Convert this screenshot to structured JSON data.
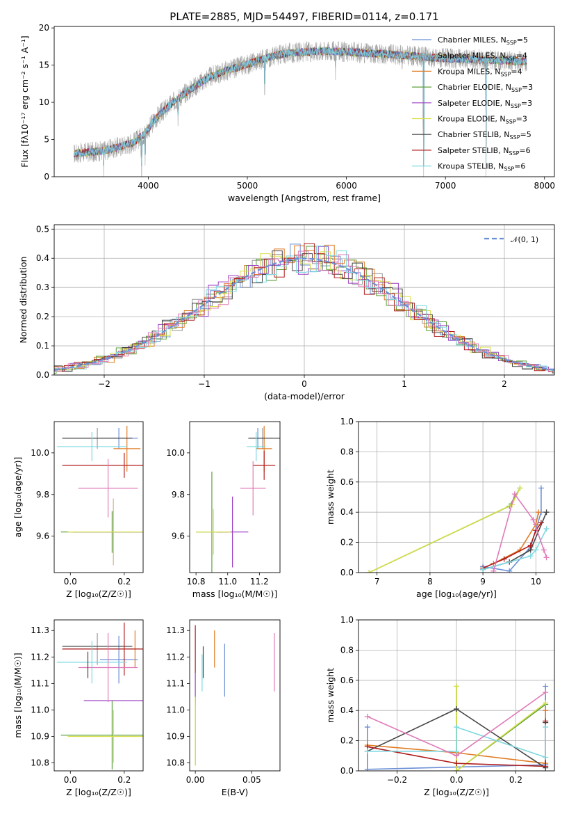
{
  "figure": {
    "title": "PLATE=2885, MJD=54497, FIBERID=0114, z=0.171"
  },
  "model_colors": {
    "Chabrier MILES": "#6b8fd6",
    "Salpeter MILES": "#999999",
    "Kroupa MILES": "#e07b24",
    "Chabrier ELODIE": "#5fa03c",
    "Salpeter ELODIE": "#9b3fc2",
    "Kroupa ELODIE": "#d8e04a",
    "Chabrier STELIB": "#444444",
    "Salpeter STELIB": "#b01c1c",
    "Kroupa STELIB": "#7fd8e0",
    "extra_pink": "#e07ab8"
  },
  "chart_data": [
    {
      "id": "spectrum",
      "type": "line",
      "xlabel": "wavelength [Angstrom, rest frame]",
      "ylabel": "Flux [fλ10⁻¹⁷ erg cm⁻² s⁻¹ A⁻¹]",
      "xlim": [
        3050,
        8100
      ],
      "ylim": [
        0,
        20.2
      ],
      "xticks": [
        "4000",
        "5000",
        "6000",
        "7000",
        "8000"
      ],
      "yticks": [
        "0",
        "5",
        "10",
        "15",
        "20"
      ],
      "legend_position": "top-right",
      "legend": [
        {
          "model": "Chabrier MILES",
          "text": "Chabrier MILES, N",
          "sub": "SSP",
          "tail": "=5"
        },
        {
          "model": "Salpeter MILES",
          "text": "Salpeter MILES, N",
          "sub": "SSP",
          "tail": "=4"
        },
        {
          "model": "Kroupa MILES",
          "text": "Kroupa MILES, N",
          "sub": "SSP",
          "tail": "=4"
        },
        {
          "model": "Chabrier ELODIE",
          "text": "Chabrier ELODIE, N",
          "sub": "SSP",
          "tail": "=3"
        },
        {
          "model": "Salpeter ELODIE",
          "text": "Salpeter ELODIE, N",
          "sub": "SSP",
          "tail": "=3"
        },
        {
          "model": "Kroupa ELODIE",
          "text": "Kroupa ELODIE, N",
          "sub": "SSP",
          "tail": "=3"
        },
        {
          "model": "Chabrier STELIB",
          "text": "Chabrier STELIB, N",
          "sub": "SSP",
          "tail": "=5"
        },
        {
          "model": "Salpeter STELIB",
          "text": "Salpeter STELIB, N",
          "sub": "SSP",
          "tail": "=6"
        },
        {
          "model": "Kroupa STELIB",
          "text": "Kroupa STELIB, N",
          "sub": "SSP",
          "tail": "=6"
        }
      ],
      "continuum": {
        "x": [
          3250,
          3400,
          3550,
          3700,
          3850,
          3950,
          4100,
          4250,
          4400,
          4600,
          4800,
          5000,
          5200,
          5400,
          5600,
          5800,
          6000,
          6200,
          6400,
          6600,
          6800,
          7000,
          7200,
          7400,
          7600,
          7800
        ],
        "y": [
          3.1,
          3.3,
          3.5,
          4.0,
          4.6,
          5.6,
          8.2,
          10.0,
          11.5,
          13.3,
          14.3,
          15.1,
          16.0,
          16.6,
          16.8,
          16.9,
          16.8,
          16.6,
          16.5,
          16.3,
          16.1,
          15.9,
          15.8,
          15.7,
          15.6,
          15.5
        ]
      },
      "absorption_lines": [
        {
          "x": 3550,
          "y_min": 0.0
        },
        {
          "x": 3933,
          "y_min": 0.0
        },
        {
          "x": 3968,
          "y_min": 1.5
        },
        {
          "x": 4300,
          "y_min": 6.8
        },
        {
          "x": 5175,
          "y_min": 11.0
        },
        {
          "x": 5890,
          "y_min": 13.0
        },
        {
          "x": 6563,
          "y_min": 14.5
        },
        {
          "x": 6780,
          "y_min": 0.0
        },
        {
          "x": 7410,
          "y_min": 0.0
        }
      ]
    },
    {
      "id": "residuals",
      "type": "line",
      "xlabel": "(data-model)/error",
      "ylabel": "Normed distribution",
      "xlim": [
        -2.5,
        2.5
      ],
      "ylim": [
        0,
        0.515
      ],
      "xticks": [
        "−2",
        "−1",
        "0",
        "1",
        "2"
      ],
      "yticks": [
        "0.0",
        "0.1",
        "0.2",
        "0.3",
        "0.4",
        "0.5"
      ],
      "grid": true,
      "legend_position": "top-right",
      "legend": [
        {
          "text": "𝒩(0, 1)",
          "color": "#6b8fd6",
          "dashed": true
        }
      ],
      "bin_width": 0.1
    },
    {
      "id": "age-vs-Z",
      "type": "scatter",
      "xlabel": "Z [log₁₀(Z/Z☉)]",
      "ylabel": "age  [log₁₀(age/yr)]",
      "xlim": [
        -0.06,
        0.27
      ],
      "ylim": [
        9.425,
        10.15
      ],
      "xticks": [
        "0.0",
        "0.2"
      ],
      "yticks": [
        "9.6",
        "9.8",
        "10.0"
      ],
      "points": [
        {
          "model": "Chabrier MILES",
          "x": 0.18,
          "xerr": 0.07,
          "y": 10.07,
          "yerr": 0.05
        },
        {
          "model": "Salpeter MILES",
          "x": 0.1,
          "xerr": 0.13,
          "y": 10.07,
          "yerr": 0.05
        },
        {
          "model": "Kroupa MILES",
          "x": 0.21,
          "xerr": 0.05,
          "y": 10.02,
          "yerr": 0.11
        },
        {
          "model": "Chabrier ELODIE",
          "x": 0.155,
          "xerr": 0.19,
          "y": 9.62,
          "yerr": 0.1
        },
        {
          "model": "Salpeter ELODIE",
          "x": 0.16,
          "xerr": 0.15,
          "y": 9.62,
          "yerr": 0.16
        },
        {
          "model": "Kroupa ELODIE",
          "x": 0.16,
          "xerr": 0.17,
          "y": 9.62,
          "yerr": 0.16
        },
        {
          "model": "Chabrier STELIB",
          "x": 0.1,
          "xerr": 0.13,
          "y": 10.07,
          "yerr": 0.0
        },
        {
          "model": "Salpeter STELIB",
          "x": 0.2,
          "xerr": 0.23,
          "y": 9.94,
          "yerr": 0.06
        },
        {
          "model": "Kroupa STELIB",
          "x": 0.08,
          "xerr": 0.13,
          "y": 10.03,
          "yerr": 0.07
        },
        {
          "model": "extra_pink",
          "x": 0.14,
          "xerr": 0.11,
          "y": 9.83,
          "yerr": 0.14
        }
      ]
    },
    {
      "id": "age-vs-mass",
      "type": "scatter",
      "xlabel": "mass [log₁₀(M/M☉)]",
      "ylabel": "",
      "xlim": [
        10.76,
        11.33
      ],
      "ylim": [
        9.425,
        10.15
      ],
      "xticks": [
        "10.8",
        "11.0",
        "11.2"
      ],
      "yticks": [
        "9.6",
        "9.8",
        "10.0"
      ],
      "points": [
        {
          "model": "Chabrier MILES",
          "x": 11.19,
          "xerr": 0.05,
          "y": 10.07,
          "yerr": 0.05
        },
        {
          "model": "Salpeter MILES",
          "x": 11.22,
          "xerr": 0.06,
          "y": 10.07,
          "yerr": 0.05
        },
        {
          "model": "Kroupa MILES",
          "x": 11.23,
          "xerr": 0.05,
          "y": 10.02,
          "yerr": 0.11
        },
        {
          "model": "Chabrier ELODIE",
          "x": 10.9,
          "xerr": 0.1,
          "y": 9.62,
          "yerr": 0.29
        },
        {
          "model": "Salpeter ELODIE",
          "x": 11.03,
          "xerr": 0.1,
          "y": 9.62,
          "yerr": 0.17
        },
        {
          "model": "Kroupa ELODIE",
          "x": 10.91,
          "xerr": 0.11,
          "y": 9.62,
          "yerr": 0.11
        },
        {
          "model": "Chabrier STELIB",
          "x": 11.23,
          "xerr": 0.1,
          "y": 10.07,
          "yerr": 0.0
        },
        {
          "model": "Salpeter STELIB",
          "x": 11.23,
          "xerr": 0.07,
          "y": 9.94,
          "yerr": 0.07
        },
        {
          "model": "Kroupa STELIB",
          "x": 11.18,
          "xerr": 0.06,
          "y": 10.03,
          "yerr": 0.07
        },
        {
          "model": "extra_pink",
          "x": 11.16,
          "xerr": 0.08,
          "y": 9.83,
          "yerr": 0.13
        }
      ]
    },
    {
      "id": "weight-vs-age",
      "type": "line",
      "xlabel": "age  [log₁₀(age/yr)]",
      "ylabel": "mass weight",
      "xlim": [
        6.65,
        10.35
      ],
      "ylim": [
        0,
        1.0
      ],
      "xticks": [
        "7",
        "8",
        "9",
        "10"
      ],
      "yticks": [
        "0.0",
        "0.2",
        "0.4",
        "0.6",
        "0.8",
        "1.0"
      ],
      "grid": true,
      "series": [
        {
          "model": "Chabrier MILES",
          "x": [
            9.0,
            9.5,
            9.9,
            10.1,
            10.1
          ],
          "y": [
            0.04,
            0.01,
            0.17,
            0.4,
            0.56
          ]
        },
        {
          "model": "Kroupa MILES",
          "x": [
            9.2,
            9.7,
            10.0,
            10.05
          ],
          "y": [
            0.06,
            0.15,
            0.32,
            0.4
          ]
        },
        {
          "model": "Chabrier ELODIE",
          "x": [
            6.85,
            9.5,
            9.7
          ],
          "y": [
            0.0,
            0.44,
            0.56
          ]
        },
        {
          "model": "Kroupa ELODIE",
          "x": [
            6.85,
            9.55,
            9.7
          ],
          "y": [
            0.0,
            0.45,
            0.56
          ]
        },
        {
          "model": "Chabrier STELIB",
          "x": [
            9.0,
            9.5,
            9.9,
            10.2
          ],
          "y": [
            0.02,
            0.07,
            0.15,
            0.4
          ]
        },
        {
          "model": "Salpeter STELIB",
          "x": [
            9.0,
            9.4,
            9.9,
            10.0,
            10.1
          ],
          "y": [
            0.03,
            0.09,
            0.18,
            0.28,
            0.33
          ]
        },
        {
          "model": "Kroupa STELIB",
          "x": [
            9.0,
            9.9,
            10.0,
            10.2
          ],
          "y": [
            0.02,
            0.11,
            0.15,
            0.29
          ]
        },
        {
          "model": "extra_pink",
          "x": [
            9.2,
            9.6,
            9.95,
            10.15,
            10.2
          ],
          "y": [
            0.01,
            0.52,
            0.35,
            0.15,
            0.1
          ]
        }
      ]
    },
    {
      "id": "mass-vs-Z",
      "type": "scatter",
      "xlabel": "Z [log₁₀(Z/Z☉)]",
      "ylabel": "mass [log₁₀(M/M☉)]",
      "xlim": [
        -0.06,
        0.27
      ],
      "ylim": [
        10.77,
        11.34
      ],
      "xticks": [
        "0.0",
        "0.2"
      ],
      "yticks": [
        "10.8",
        "10.9",
        "11.0",
        "11.1",
        "11.2",
        "11.3"
      ],
      "points": [
        {
          "model": "Chabrier MILES",
          "x": 0.18,
          "xerr": 0.07,
          "y": 11.19,
          "yerr": 0.09
        },
        {
          "model": "Salpeter MILES",
          "x": 0.1,
          "xerr": 0.13,
          "y": 11.23,
          "yerr": 0.06
        },
        {
          "model": "Kroupa MILES",
          "x": 0.24,
          "xerr": 0.02,
          "y": 11.23,
          "yerr": 0.07
        },
        {
          "model": "Chabrier ELODIE",
          "x": 0.155,
          "xerr": 0.19,
          "y": 10.905,
          "yerr": 0.13
        },
        {
          "model": "Salpeter ELODIE",
          "x": 0.16,
          "xerr": 0.11,
          "y": 11.035,
          "yerr": 0.0
        },
        {
          "model": "Kroupa ELODIE",
          "x": 0.16,
          "xerr": 0.17,
          "y": 10.9,
          "yerr": 0.1
        },
        {
          "model": "Chabrier STELIB",
          "x": 0.1,
          "xerr": 0.13,
          "y": 11.24,
          "yerr": 0.0
        },
        {
          "model": "Salpeter STELIB",
          "x": 0.2,
          "xerr": 0.23,
          "y": 11.23,
          "yerr": 0.1
        },
        {
          "model": "Kroupa STELIB",
          "x": 0.08,
          "xerr": 0.13,
          "y": 11.18,
          "yerr": 0.08
        },
        {
          "model": "extra_pink",
          "x": 0.14,
          "xerr": 0.11,
          "y": 11.16,
          "yerr": 0.13
        },
        {
          "model": "Chabrier STELIB",
          "x": 0.065,
          "xerr": 0.0,
          "y": 11.17,
          "yerr": 0.05
        }
      ]
    },
    {
      "id": "mass-vs-EBV",
      "type": "scatter",
      "xlabel": "E(B-V)",
      "ylabel": "",
      "xlim": [
        -0.005,
        0.075
      ],
      "ylim": [
        10.77,
        11.34
      ],
      "xticks": [
        "0.00",
        "0.05"
      ],
      "yticks": [
        "10.8",
        "10.9",
        "11.0",
        "11.1",
        "11.2",
        "11.3"
      ],
      "points": [
        {
          "model": "Chabrier MILES",
          "x": 0.026,
          "yerr": 0.1,
          "y": 11.15
        },
        {
          "model": "Kroupa MILES",
          "x": 0.017,
          "yerr": 0.07,
          "y": 11.23
        },
        {
          "model": "Chabrier ELODIE",
          "x": 0.0,
          "yerr": 0.13,
          "y": 10.92
        },
        {
          "model": "Salpeter ELODIE",
          "x": 0.0,
          "yerr": 0.06,
          "y": 11.08
        },
        {
          "model": "Kroupa ELODIE",
          "x": 0.0,
          "yerr": 0.13,
          "y": 10.92
        },
        {
          "model": "Chabrier STELIB",
          "x": 0.007,
          "yerr": 0.06,
          "y": 11.18
        },
        {
          "model": "Salpeter STELIB",
          "x": 0.0,
          "yerr": 0.09,
          "y": 11.23
        },
        {
          "model": "Kroupa STELIB",
          "x": 0.006,
          "yerr": 0.07,
          "y": 11.14
        },
        {
          "model": "extra_pink",
          "x": 0.07,
          "yerr": 0.11,
          "y": 11.18
        }
      ]
    },
    {
      "id": "weight-vs-Z",
      "type": "line",
      "xlabel": "Z [log₁₀(Z/Z☉)]",
      "ylabel": "mass weight",
      "xlim": [
        -0.33,
        0.33
      ],
      "ylim": [
        0,
        1.0
      ],
      "xticks": [
        "−0.2",
        "0.0",
        "0.2"
      ],
      "yticks": [
        "0.0",
        "0.2",
        "0.4",
        "0.6",
        "0.8",
        "1.0"
      ],
      "grid": true,
      "series": [
        {
          "model": "Chabrier MILES",
          "x": [
            -0.3,
            -0.3,
            0.3,
            0.3
          ],
          "y": [
            0.29,
            0.01,
            0.04,
            0.56
          ]
        },
        {
          "model": "Kroupa MILES",
          "x": [
            -0.3,
            0.0,
            0.3,
            0.3
          ],
          "y": [
            0.17,
            0.12,
            0.05,
            0.4
          ]
        },
        {
          "model": "Chabrier ELODIE",
          "x": [
            0.0,
            0.0,
            0.3
          ],
          "y": [
            0.56,
            0.0,
            0.44
          ]
        },
        {
          "model": "Kroupa ELODIE",
          "x": [
            0.0,
            0.0,
            0.3
          ],
          "y": [
            0.56,
            0.0,
            0.45
          ]
        },
        {
          "model": "Chabrier STELIB",
          "x": [
            -0.3,
            0.0,
            0.3,
            0.3
          ],
          "y": [
            0.13,
            0.41,
            0.02,
            0.32
          ]
        },
        {
          "model": "Salpeter STELIB",
          "x": [
            -0.3,
            0.0,
            0.3,
            0.3
          ],
          "y": [
            0.16,
            0.05,
            0.03,
            0.33
          ]
        },
        {
          "model": "Kroupa STELIB",
          "x": [
            -0.3,
            0.0,
            0.0,
            0.3,
            0.3
          ],
          "y": [
            0.13,
            0.13,
            0.29,
            0.09,
            0.29
          ]
        },
        {
          "model": "extra_pink",
          "x": [
            -0.3,
            0.0,
            0.3
          ],
          "y": [
            0.36,
            0.1,
            0.52
          ]
        }
      ]
    }
  ]
}
